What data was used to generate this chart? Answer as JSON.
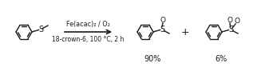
{
  "bg_color": "#ffffff",
  "line_color": "#1a1a1a",
  "arrow_above": "Fe(acac)₂ / O₂",
  "arrow_below": "18-crown-6, 100 °C, 2 h",
  "yield1": "90%",
  "yield2": "6%",
  "plus_sign": "+",
  "figsize": [
    3.37,
    0.84
  ],
  "dpi": 100,
  "lw": 1.0,
  "r": 10
}
